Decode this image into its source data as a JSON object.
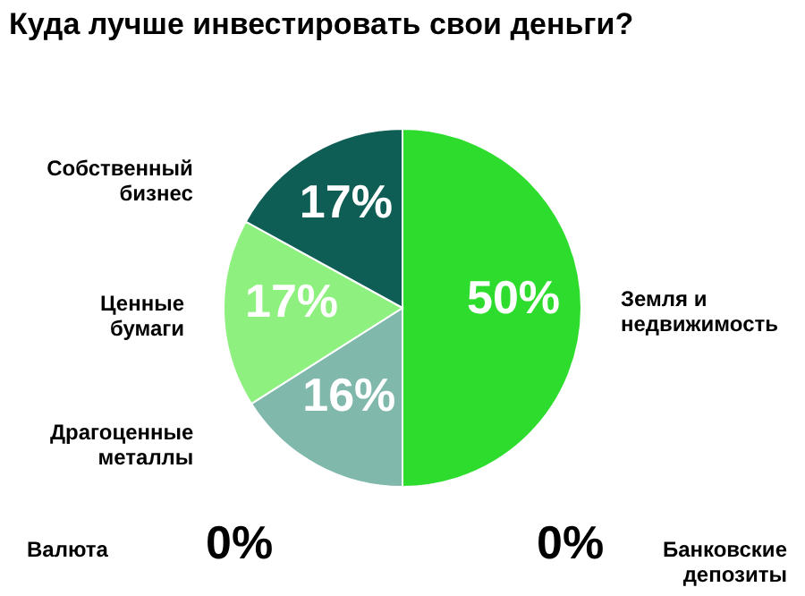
{
  "chart_data": {
    "type": "pie",
    "title": "Куда лучше инвестировать свои деньги?",
    "categories": [
      "Земля и недвижимость",
      "Драгоценные металлы",
      "Ценные бумаги",
      "Собственный бизнес",
      "Валюта",
      "Банковские депозиты"
    ],
    "values": [
      50,
      16,
      17,
      17,
      0,
      0
    ],
    "value_labels": [
      "50%",
      "16%",
      "17%",
      "17%",
      "0%",
      "0%"
    ],
    "colors": [
      "#2edc2e",
      "#80b8ac",
      "#8ef07e",
      "#0f5e55",
      null,
      null
    ]
  }
}
